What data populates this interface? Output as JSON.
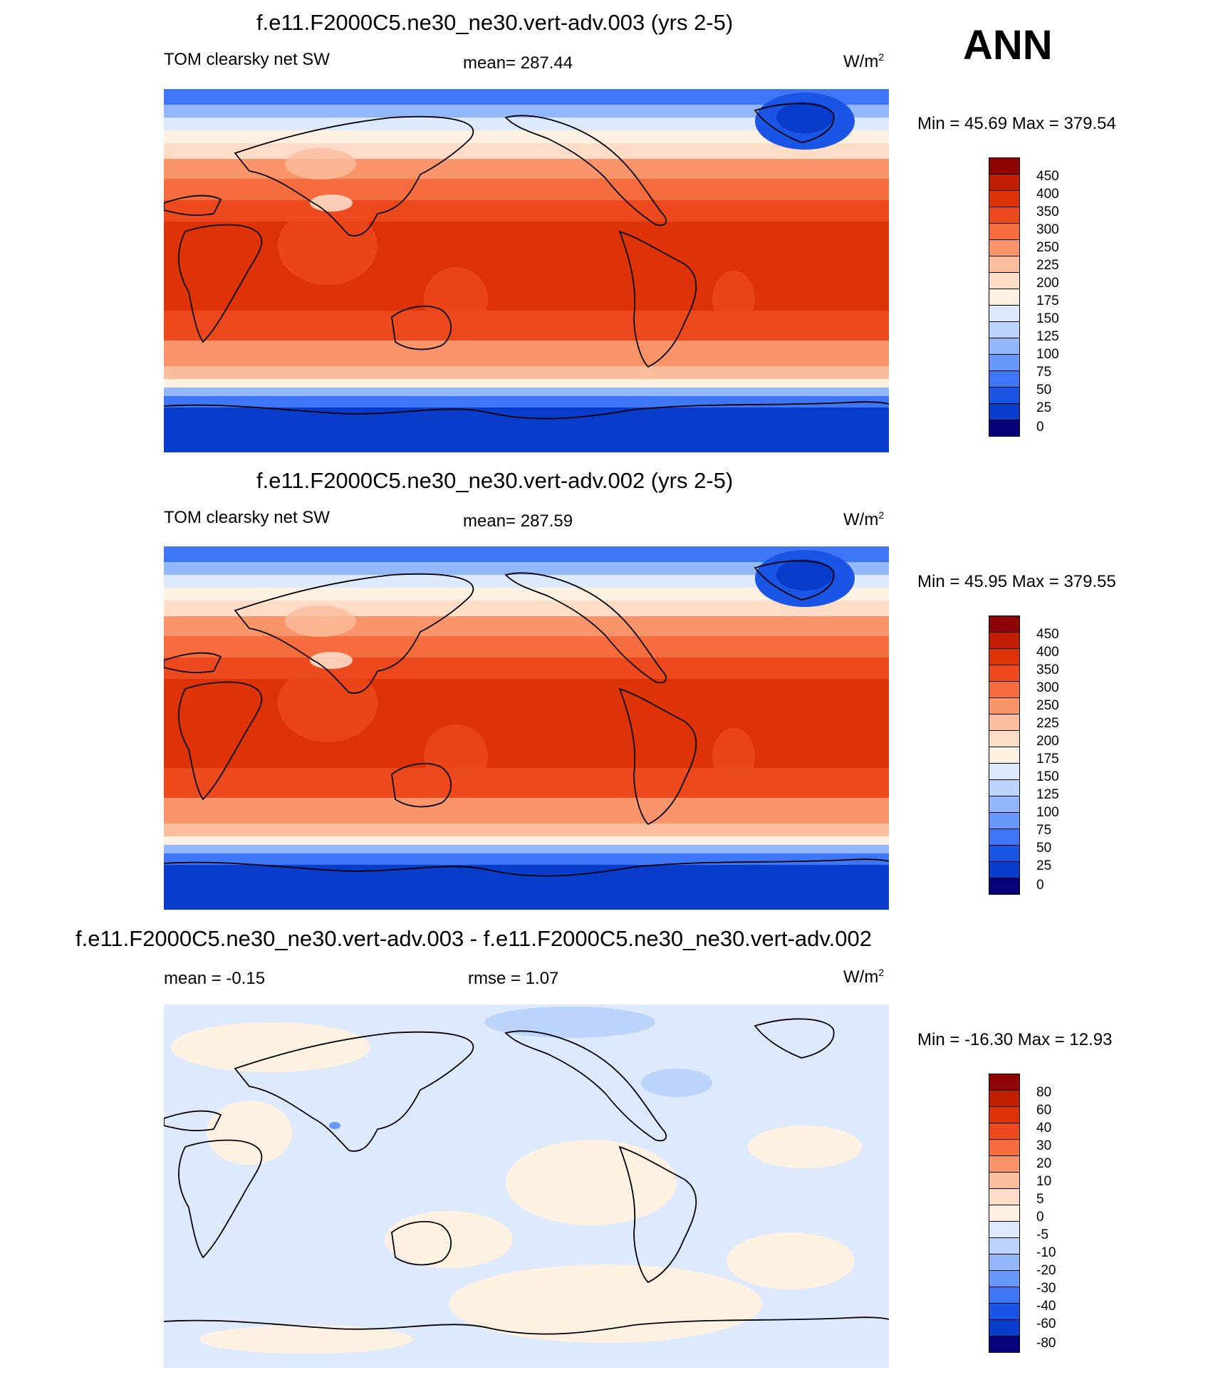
{
  "season": "ANN",
  "colors": {
    "abs": [
      "#08007a",
      "#0a2fa6",
      "#0a3ccc",
      "#1a55e6",
      "#3e76f5",
      "#6798fb",
      "#92b7fb",
      "#bcd3fc",
      "#dde9fd",
      "#fef1e1",
      "#fddcc8",
      "#fcbd9d",
      "#fa946a",
      "#f56c3f",
      "#ec4a1e",
      "#de3309",
      "#c21f02",
      "#8f0404"
    ],
    "diff": [
      "#08007a",
      "#0a2fa6",
      "#0a3ccc",
      "#1a55e6",
      "#3e76f5",
      "#6798fb",
      "#92b7fb",
      "#bcd3fc",
      "#dde9fd",
      "#fef1e1",
      "#fddcc8",
      "#fcbd9d",
      "#fa946a",
      "#f56c3f",
      "#ec4a1e",
      "#de3309",
      "#c21f02",
      "#8f0404"
    ],
    "coast": "#000000"
  },
  "panels": [
    {
      "title": "f.e11.F2000C5.ne30_ne30.vert-adv.003 (yrs 2-5)",
      "left_label": "TOM clearsky net SW",
      "center_label": "mean= 287.44",
      "units": "W/m",
      "units_sup": "2",
      "minmax": "Min =  45.69 Max = 379.54",
      "levels": [
        "450",
        "400",
        "350",
        "300",
        "250",
        "225",
        "200",
        "175",
        "150",
        "125",
        "100",
        "75",
        "50",
        "25",
        "0"
      ]
    },
    {
      "title": "f.e11.F2000C5.ne30_ne30.vert-adv.002 (yrs 2-5)",
      "left_label": "TOM clearsky net SW",
      "center_label": "mean= 287.59",
      "units": "W/m",
      "units_sup": "2",
      "minmax": "Min =  45.95 Max = 379.55",
      "levels": [
        "450",
        "400",
        "350",
        "300",
        "250",
        "225",
        "200",
        "175",
        "150",
        "125",
        "100",
        "75",
        "50",
        "25",
        "0"
      ]
    },
    {
      "title": "f.e11.F2000C5.ne30_ne30.vert-adv.003 - f.e11.F2000C5.ne30_ne30.vert-adv.002",
      "left_label": "mean =  -0.15",
      "center_label": "rmse =   1.07",
      "units": "W/m",
      "units_sup": "2",
      "minmax": "Min = -16.30 Max =  12.93",
      "levels": [
        "80",
        "60",
        "40",
        "30",
        "20",
        "10",
        "5",
        "0",
        "-5",
        "-10",
        "-20",
        "-30",
        "-40",
        "-60",
        "-80"
      ]
    }
  ]
}
